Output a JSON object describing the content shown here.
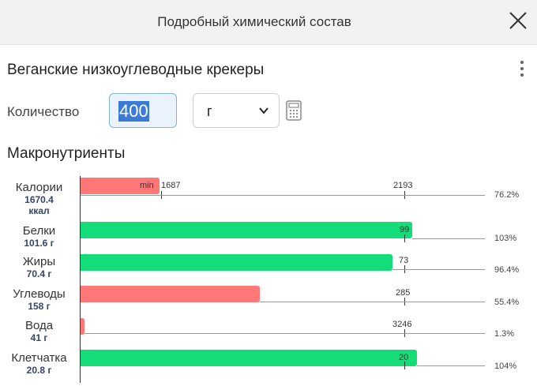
{
  "header": {
    "title": "Подробный химический состав"
  },
  "product": {
    "name": "Веганские низкоуглеводные крекеры"
  },
  "quantity": {
    "label": "Количество",
    "value": "400",
    "unit": "г"
  },
  "macros": {
    "title": "Макронутриенты",
    "min_label": "min",
    "rows": [
      {
        "name": "Калории",
        "amount": "1670.4",
        "amount_unit": "ккал",
        "min": "1687",
        "target": "2193",
        "percent": "76.2%"
      },
      {
        "name": "Белки",
        "amount": "101.6 г",
        "target": "99",
        "percent": "103%"
      },
      {
        "name": "Жиры",
        "amount": "70.4 г",
        "target": "73",
        "percent": "96.4%"
      },
      {
        "name": "Углеводы",
        "amount": "158 г",
        "target": "285",
        "percent": "55.4%"
      },
      {
        "name": "Вода",
        "amount": "41 г",
        "target": "3246",
        "percent": "1.3%"
      },
      {
        "name": "Клетчатка",
        "amount": "20.8 г",
        "target": "20",
        "percent": "104%"
      }
    ]
  },
  "colors": {
    "low": "#ff7777",
    "ok": "#14dc78",
    "accent": "#3b7bd6"
  },
  "icons": {
    "close": "close-icon",
    "more": "more-vertical-icon",
    "chevron": "chevron-down-icon",
    "calculator": "calculator-icon"
  }
}
